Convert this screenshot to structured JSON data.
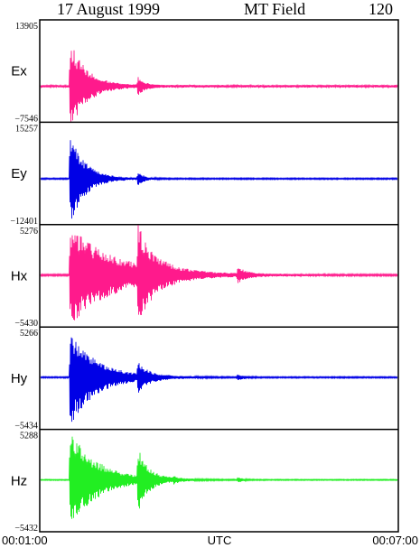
{
  "header": {
    "date": "17 August 1999",
    "title": "MT Field",
    "number": "120"
  },
  "chart_data": {
    "type": "line",
    "x_range": [
      "00:01:00",
      "00:07:00"
    ],
    "x_tick_labels": [
      "00:01:00",
      "00:07:00"
    ],
    "xlabel": "UTC",
    "channels": [
      {
        "name": "Ex",
        "color": "#ff1a8c",
        "ylim": [
          -7546,
          13905
        ],
        "ymax_label": "13905",
        "ymin_label": "−7546",
        "baseline": 0,
        "noise": 0.07,
        "events": [
          {
            "t": 0.08,
            "amp": 0.95,
            "dur": 0.1,
            "clip": false
          },
          {
            "t": 0.27,
            "amp": 0.18,
            "dur": 0.04,
            "clip": false
          }
        ]
      },
      {
        "name": "Ey",
        "color": "#0000e6",
        "ylim": [
          -12401,
          15257
        ],
        "ymax_label": "15257",
        "ymin_label": "−12401",
        "baseline": 0,
        "noise": 0.04,
        "events": [
          {
            "t": 0.08,
            "amp": 1.0,
            "dur": 0.09,
            "clip": false
          },
          {
            "t": 0.27,
            "amp": 0.18,
            "dur": 0.03,
            "clip": false
          }
        ]
      },
      {
        "name": "Hx",
        "color": "#ff1a8c",
        "ylim": [
          -5430,
          5276
        ],
        "ymax_label": "5276",
        "ymin_label": "−5430",
        "baseline": 0,
        "noise": 0.05,
        "events": [
          {
            "t": 0.08,
            "amp": 1.0,
            "dur": 0.28,
            "clip": true
          },
          {
            "t": 0.27,
            "amp": 0.85,
            "dur": 0.1,
            "clip": false
          },
          {
            "t": 0.55,
            "amp": 0.15,
            "dur": 0.05,
            "clip": false
          }
        ]
      },
      {
        "name": "Hy",
        "color": "#0000e6",
        "ylim": [
          -5434,
          5266
        ],
        "ymax_label": "5266",
        "ymin_label": "−5434",
        "baseline": 0,
        "noise": 0.04,
        "events": [
          {
            "t": 0.08,
            "amp": 1.0,
            "dur": 0.16,
            "clip": true
          },
          {
            "t": 0.27,
            "amp": 0.28,
            "dur": 0.06,
            "clip": false
          },
          {
            "t": 0.55,
            "amp": 0.08,
            "dur": 0.03,
            "clip": false
          }
        ]
      },
      {
        "name": "Hz",
        "color": "#22ee22",
        "ylim": [
          -5432,
          5288
        ],
        "ymax_label": "5288",
        "ymin_label": "−5432",
        "baseline": 0,
        "noise": 0.03,
        "events": [
          {
            "t": 0.08,
            "amp": 1.0,
            "dur": 0.17,
            "clip": true
          },
          {
            "t": 0.27,
            "amp": 0.65,
            "dur": 0.06,
            "clip": false
          },
          {
            "t": 0.37,
            "amp": 0.06,
            "dur": 0.03,
            "clip": false
          },
          {
            "t": 0.55,
            "amp": 0.06,
            "dur": 0.03,
            "clip": false
          }
        ]
      }
    ]
  }
}
